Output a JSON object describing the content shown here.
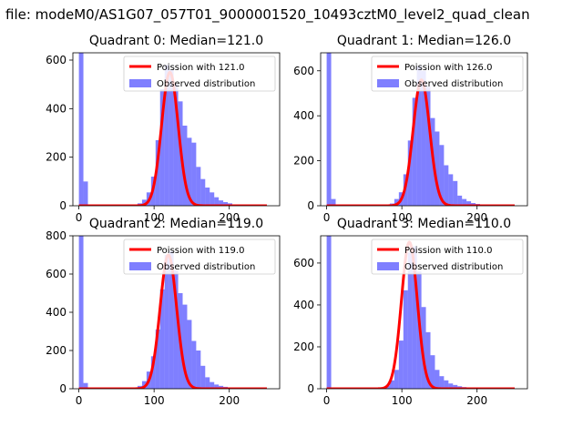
{
  "figure": {
    "suptitle": "file: modeM0/AS1G07_057T01_9000001520_10493cztM0_level2_quad_clean"
  },
  "colors": {
    "histogram": "#0000ff",
    "poisson_line": "#ff0000",
    "legend_border": "#cccccc"
  },
  "chart_data": [
    {
      "type": "bar",
      "title": "Quadrant 0: Median=121.0",
      "median": 121.0,
      "xlim": [
        -8,
        267
      ],
      "ylim": [
        0,
        630
      ],
      "xticks": [
        0,
        100,
        200
      ],
      "yticks": [
        0,
        200,
        400,
        600
      ],
      "bin_width": 6,
      "hist_x": [
        0,
        6,
        78,
        84,
        90,
        96,
        102,
        108,
        114,
        120,
        126,
        132,
        138,
        144,
        150,
        156,
        162,
        168,
        174,
        180,
        186,
        192,
        198,
        204,
        210
      ],
      "hist_y": [
        630,
        100,
        10,
        25,
        55,
        120,
        270,
        480,
        580,
        560,
        500,
        430,
        330,
        280,
        260,
        160,
        110,
        75,
        55,
        35,
        22,
        15,
        10,
        5,
        2
      ],
      "poisson": {
        "label": "Poission with 121.0",
        "peak": 550,
        "sigma": 11,
        "x_range": [
          0,
          250
        ]
      },
      "legend": {
        "line_label": "Poission with 121.0",
        "hist_label": "Observed distribution",
        "placement": "upper right"
      }
    },
    {
      "type": "bar",
      "title": "Quadrant 1: Median=126.0",
      "median": 126.0,
      "xlim": [
        -8,
        267
      ],
      "ylim": [
        0,
        680
      ],
      "xticks": [
        0,
        100,
        200
      ],
      "yticks": [
        0,
        200,
        400,
        600
      ],
      "bin_width": 6,
      "hist_x": [
        0,
        6,
        84,
        90,
        96,
        102,
        108,
        114,
        120,
        126,
        132,
        138,
        144,
        150,
        156,
        162,
        168,
        174,
        180,
        186,
        192,
        198,
        204,
        210
      ],
      "hist_y": [
        680,
        30,
        10,
        30,
        60,
        140,
        290,
        480,
        620,
        600,
        530,
        390,
        330,
        270,
        180,
        140,
        110,
        45,
        30,
        20,
        12,
        8,
        5,
        2
      ],
      "poisson": {
        "label": "Poission with 126.0",
        "peak": 560,
        "sigma": 11,
        "x_range": [
          0,
          250
        ]
      },
      "legend": {
        "line_label": "Poission with 126.0",
        "hist_label": "Observed distribution",
        "placement": "upper right"
      }
    },
    {
      "type": "bar",
      "title": "Quadrant 2: Median=119.0",
      "median": 119.0,
      "xlim": [
        -8,
        267
      ],
      "ylim": [
        0,
        800
      ],
      "xticks": [
        0,
        100,
        200
      ],
      "yticks": [
        0,
        200,
        400,
        600,
        800
      ],
      "bin_width": 6,
      "hist_x": [
        0,
        6,
        72,
        78,
        84,
        90,
        96,
        102,
        108,
        114,
        120,
        126,
        132,
        138,
        144,
        150,
        156,
        162,
        168,
        174,
        180,
        186,
        192,
        198,
        204
      ],
      "hist_y": [
        800,
        30,
        5,
        15,
        40,
        90,
        170,
        310,
        520,
        700,
        720,
        620,
        500,
        440,
        360,
        250,
        200,
        120,
        60,
        35,
        22,
        15,
        10,
        5,
        2
      ],
      "poisson": {
        "label": "Poission with 119.0",
        "peak": 700,
        "sigma": 11,
        "x_range": [
          0,
          250
        ]
      },
      "legend": {
        "line_label": "Poission with 119.0",
        "hist_label": "Observed distribution",
        "placement": "upper right"
      }
    },
    {
      "type": "bar",
      "title": "Quadrant 3: Median=110.0",
      "median": 110.0,
      "xlim": [
        -8,
        267
      ],
      "ylim": [
        0,
        730
      ],
      "xticks": [
        0,
        100,
        200
      ],
      "yticks": [
        0,
        200,
        400,
        600
      ],
      "bin_width": 6,
      "hist_x": [
        0,
        72,
        78,
        84,
        90,
        96,
        102,
        108,
        114,
        120,
        126,
        132,
        138,
        144,
        150,
        156,
        162,
        168,
        174,
        180,
        186,
        192
      ],
      "hist_y": [
        730,
        5,
        15,
        40,
        90,
        230,
        470,
        650,
        680,
        560,
        390,
        270,
        160,
        90,
        60,
        40,
        25,
        18,
        12,
        8,
        5,
        2
      ],
      "poisson": {
        "label": "Poission with 110.0",
        "peak": 700,
        "sigma": 10.5,
        "x_range": [
          0,
          250
        ]
      },
      "legend": {
        "line_label": "Poission with 110.0",
        "hist_label": "Observed distribution",
        "placement": "upper right"
      }
    }
  ]
}
